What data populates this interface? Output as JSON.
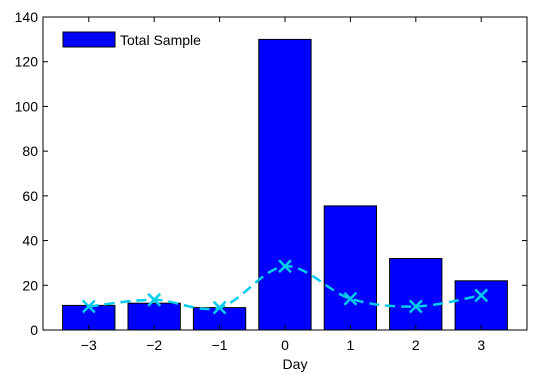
{
  "chart_data": {
    "type": "bar",
    "title": "",
    "xlabel": "Day",
    "ylabel": "",
    "categories": [
      "−3",
      "−2",
      "−1",
      "0",
      "1",
      "2",
      "3"
    ],
    "x": [
      -3,
      -2,
      -1,
      0,
      1,
      2,
      3
    ],
    "ylim": [
      0,
      140
    ],
    "yticks": [
      0,
      20,
      40,
      60,
      80,
      100,
      120,
      140
    ],
    "grid": false,
    "legend_position": "top-left",
    "series": [
      {
        "name": "Total Sample",
        "kind": "bar",
        "color": "#0000ff",
        "values": [
          11,
          12,
          10,
          130,
          55.5,
          32,
          22
        ]
      },
      {
        "kind": "line",
        "style": "dashed",
        "marker": "x",
        "color": "#00ccee",
        "values": [
          10.5,
          13.5,
          10,
          28.5,
          14,
          10.5,
          15.5
        ]
      }
    ]
  }
}
